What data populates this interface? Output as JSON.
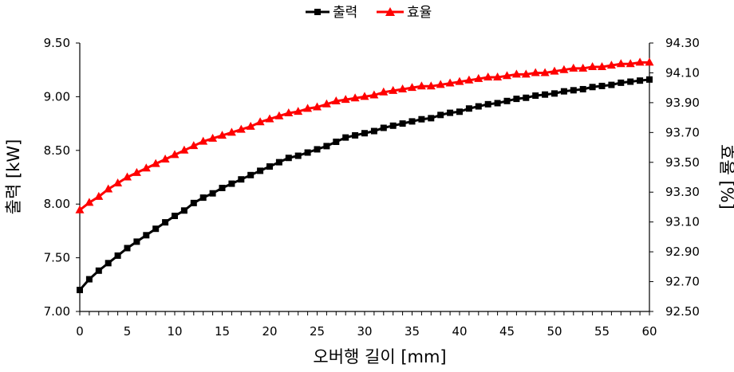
{
  "chart_data": {
    "type": "line",
    "title": "",
    "xlabel": "오버행 길이 [mm]",
    "ylabel": "출력 [kW]",
    "y2label": "효율 [%]",
    "xlim": [
      0,
      60
    ],
    "ylim": [
      7.0,
      9.5
    ],
    "y2lim": [
      92.5,
      94.3
    ],
    "x_ticks": [
      "0",
      "5",
      "10",
      "15",
      "20",
      "25",
      "30",
      "35",
      "40",
      "45",
      "50",
      "55",
      "60"
    ],
    "y_ticks": [
      "7.00",
      "7.50",
      "8.00",
      "8.50",
      "9.00",
      "9.50"
    ],
    "y2_ticks": [
      "92.50",
      "92.70",
      "92.90",
      "93.10",
      "93.30",
      "93.50",
      "93.70",
      "93.90",
      "94.10",
      "94.30"
    ],
    "grid": false,
    "legend_position": "top-center",
    "x": [
      0,
      1,
      2,
      3,
      4,
      5,
      6,
      7,
      8,
      9,
      10,
      11,
      12,
      13,
      14,
      15,
      16,
      17,
      18,
      19,
      20,
      21,
      22,
      23,
      24,
      25,
      26,
      27,
      28,
      29,
      30,
      31,
      32,
      33,
      34,
      35,
      36,
      37,
      38,
      39,
      40,
      41,
      42,
      43,
      44,
      45,
      46,
      47,
      48,
      49,
      50,
      51,
      52,
      53,
      54,
      55,
      56,
      57,
      58,
      59,
      60
    ],
    "series": [
      {
        "name": "출력",
        "axis": "left",
        "color": "#000000",
        "marker": "square",
        "values": [
          7.2,
          7.3,
          7.38,
          7.45,
          7.52,
          7.59,
          7.65,
          7.71,
          7.77,
          7.83,
          7.89,
          7.94,
          8.01,
          8.06,
          8.1,
          8.15,
          8.19,
          8.23,
          8.27,
          8.31,
          8.35,
          8.39,
          8.43,
          8.45,
          8.48,
          8.51,
          8.54,
          8.58,
          8.62,
          8.64,
          8.66,
          8.68,
          8.71,
          8.73,
          8.75,
          8.77,
          8.79,
          8.8,
          8.83,
          8.85,
          8.86,
          8.89,
          8.91,
          8.93,
          8.94,
          8.96,
          8.98,
          8.99,
          9.01,
          9.02,
          9.03,
          9.05,
          9.06,
          9.07,
          9.09,
          9.1,
          9.11,
          9.13,
          9.14,
          9.15,
          9.16
        ]
      },
      {
        "name": "효율",
        "axis": "right",
        "color": "#ff0000",
        "marker": "triangle",
        "values": [
          93.18,
          93.23,
          93.27,
          93.32,
          93.36,
          93.4,
          93.43,
          93.46,
          93.49,
          93.52,
          93.55,
          93.58,
          93.61,
          93.64,
          93.66,
          93.68,
          93.7,
          93.72,
          93.74,
          93.77,
          93.79,
          93.81,
          93.83,
          93.84,
          93.86,
          93.87,
          93.89,
          93.91,
          93.92,
          93.93,
          93.94,
          93.95,
          93.97,
          93.98,
          93.99,
          94.0,
          94.01,
          94.01,
          94.02,
          94.03,
          94.04,
          94.05,
          94.06,
          94.07,
          94.07,
          94.08,
          94.09,
          94.09,
          94.1,
          94.1,
          94.11,
          94.12,
          94.13,
          94.13,
          94.14,
          94.14,
          94.15,
          94.16,
          94.16,
          94.17,
          94.17
        ]
      }
    ]
  }
}
